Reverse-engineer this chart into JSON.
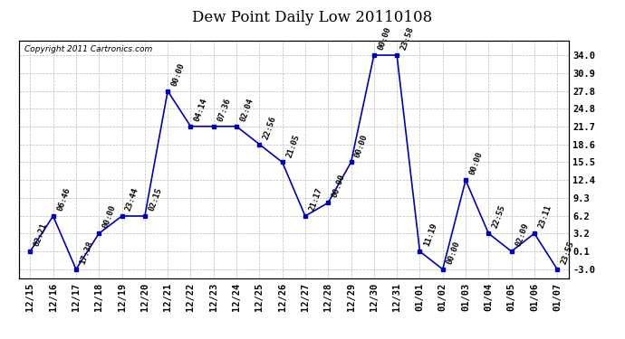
{
  "title": "Dew Point Daily Low 20110108",
  "copyright": "Copyright 2011 Cartronics.com",
  "yticks": [
    34.0,
    30.9,
    27.8,
    24.8,
    21.7,
    18.6,
    15.5,
    12.4,
    9.3,
    6.2,
    3.2,
    0.1,
    -3.0
  ],
  "ylim": [
    -4.5,
    36.5
  ],
  "points": [
    {
      "date": "12/15",
      "time": "02:21",
      "value": 0.1
    },
    {
      "date": "12/16",
      "time": "06:46",
      "value": 6.2
    },
    {
      "date": "12/17",
      "time": "17:38",
      "value": -3.0
    },
    {
      "date": "12/18",
      "time": "00:00",
      "value": 3.2
    },
    {
      "date": "12/19",
      "time": "23:44",
      "value": 6.2
    },
    {
      "date": "12/20",
      "time": "02:15",
      "value": 6.2
    },
    {
      "date": "12/21",
      "time": "00:00",
      "value": 27.8
    },
    {
      "date": "12/22",
      "time": "04:14",
      "value": 21.7
    },
    {
      "date": "12/23",
      "time": "07:36",
      "value": 21.7
    },
    {
      "date": "12/24",
      "time": "02:04",
      "value": 21.7
    },
    {
      "date": "12/25",
      "time": "22:56",
      "value": 18.6
    },
    {
      "date": "12/26",
      "time": "21:05",
      "value": 15.5
    },
    {
      "date": "12/27",
      "time": "21:17",
      "value": 6.2
    },
    {
      "date": "12/28",
      "time": "00:00",
      "value": 8.5
    },
    {
      "date": "12/29",
      "time": "00:00",
      "value": 15.5
    },
    {
      "date": "12/30",
      "time": "00:00",
      "value": 34.0
    },
    {
      "date": "12/31",
      "time": "23:58",
      "value": 34.0
    },
    {
      "date": "01/01",
      "time": "11:19",
      "value": 0.1
    },
    {
      "date": "01/02",
      "time": "00:00",
      "value": -3.0
    },
    {
      "date": "01/03",
      "time": "00:00",
      "value": 12.4
    },
    {
      "date": "01/04",
      "time": "22:55",
      "value": 3.2
    },
    {
      "date": "01/05",
      "time": "02:09",
      "value": 0.1
    },
    {
      "date": "01/06",
      "time": "23:11",
      "value": 3.2
    },
    {
      "date": "01/07",
      "time": "23:55",
      "value": -3.0
    }
  ],
  "line_color": "#0000bb",
  "marker_color": "#0000bb",
  "bg_color": "#ffffff",
  "grid_color": "#bbbbbb",
  "title_fontsize": 12,
  "tick_fontsize": 7.5,
  "annotation_fontsize": 6.5
}
